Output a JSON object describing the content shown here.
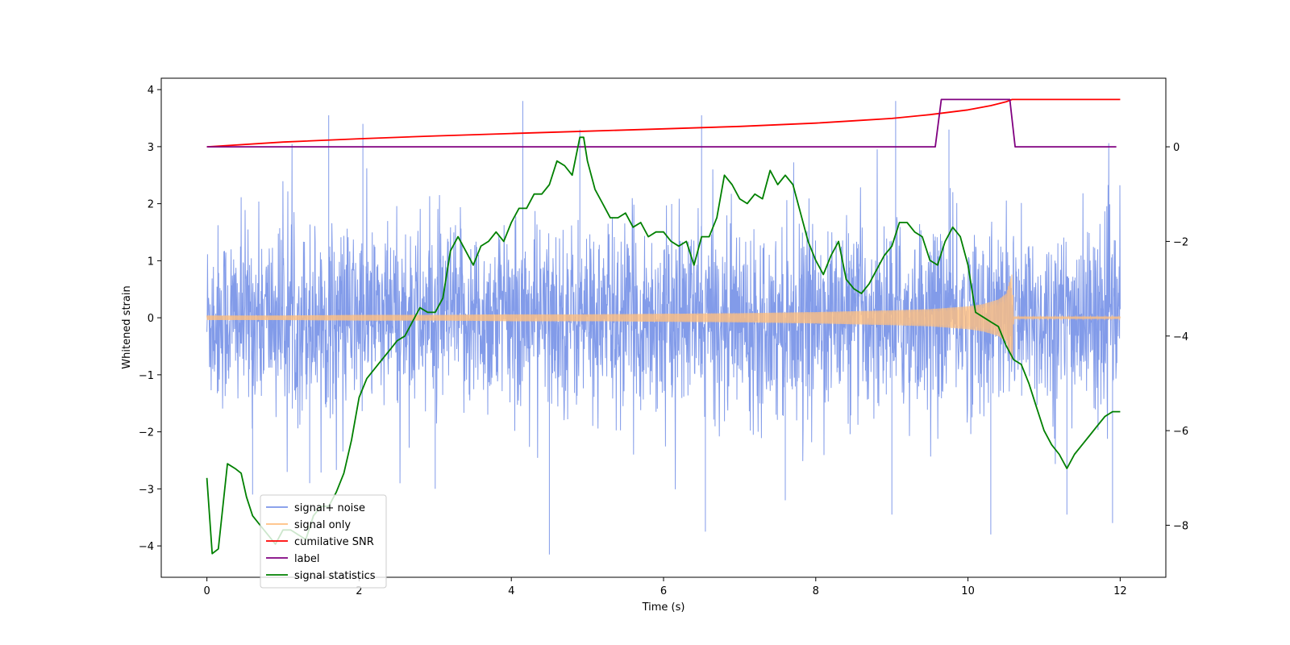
{
  "chart_data": {
    "type": "line",
    "title": "",
    "xlabel": "Time (s)",
    "ylabel": "Whitened strain",
    "y2label": "",
    "xlim": [
      -0.6,
      12.6
    ],
    "ylim": [
      -4.55,
      4.2
    ],
    "y2lim": [
      -9.1,
      1.45
    ],
    "xticks": [
      0,
      2,
      4,
      6,
      8,
      10,
      12
    ],
    "yticks": [
      -4,
      -3,
      -2,
      -1,
      0,
      1,
      2,
      3,
      4
    ],
    "y2ticks": [
      -8,
      -6,
      -4,
      -2,
      0
    ],
    "xtick_labels": [
      "0",
      "2",
      "4",
      "6",
      "8",
      "10",
      "12"
    ],
    "ytick_labels": [
      "−4",
      "−3",
      "−2",
      "−1",
      "0",
      "1",
      "2",
      "3",
      "4"
    ],
    "y2tick_labels": [
      "−8",
      "−6",
      "−4",
      "−2",
      "0"
    ],
    "grid": false,
    "legend_position": "lower-left",
    "legend": [
      {
        "name": "signal+ noise",
        "color": "#7b96e8"
      },
      {
        "name": "signal only",
        "color": "#ffbf80"
      },
      {
        "name": "cumilative SNR",
        "color": "#ff0000"
      },
      {
        "name": "label",
        "color": "#800080"
      },
      {
        "name": "signal statistics",
        "color": "#008000"
      }
    ],
    "series": [
      {
        "name": "signal+ noise",
        "axis": "left",
        "color": "#7b96e8",
        "description": "noise-dominated whitened strain, approx. spread -4.2 to 3.8, filled between 0 and 12 s",
        "x": [
          0,
          12
        ],
        "band": [
          -2.2,
          2.2
        ],
        "peaks": [
          {
            "x": 1.6,
            "y": 3.55
          },
          {
            "x": 2.05,
            "y": 3.4
          },
          {
            "x": 4.15,
            "y": 3.8
          },
          {
            "x": 4.9,
            "y": 3.3
          },
          {
            "x": 6.5,
            "y": 3.55
          },
          {
            "x": 9.05,
            "y": 3.8
          },
          {
            "x": 9.75,
            "y": 3.3
          },
          {
            "x": 4.5,
            "y": -4.15
          },
          {
            "x": 6.55,
            "y": -3.75
          },
          {
            "x": 9.0,
            "y": -3.45
          },
          {
            "x": 10.3,
            "y": -3.8
          },
          {
            "x": 11.3,
            "y": -3.45
          },
          {
            "x": 11.9,
            "y": -3.6
          },
          {
            "x": 0.6,
            "y": -3.1
          },
          {
            "x": 3.0,
            "y": -3.0
          },
          {
            "x": 1.35,
            "y": -2.9
          },
          {
            "x": 7.6,
            "y": -3.2
          }
        ]
      },
      {
        "name": "signal only",
        "axis": "left",
        "color": "#ffbf80",
        "description": "chirp with growing amplitude ending near 10.6 s",
        "x": [
          0,
          1,
          2,
          3,
          4,
          5,
          6,
          7,
          8,
          9,
          9.5,
          10,
          10.2,
          10.4,
          10.5,
          10.58,
          10.6,
          12
        ],
        "envelope": [
          0.04,
          0.04,
          0.05,
          0.05,
          0.06,
          0.06,
          0.07,
          0.08,
          0.1,
          0.13,
          0.15,
          0.2,
          0.24,
          0.32,
          0.42,
          0.78,
          0.02,
          0.02
        ]
      },
      {
        "name": "cumilative SNR",
        "axis": "right",
        "color": "#ff0000",
        "x": [
          0,
          1,
          2,
          3,
          4,
          5,
          6,
          7,
          8,
          8.5,
          9,
          9.5,
          10,
          10.3,
          10.5,
          10.58,
          12
        ],
        "y": [
          0.0,
          0.1,
          0.17,
          0.23,
          0.28,
          0.33,
          0.38,
          0.43,
          0.5,
          0.55,
          0.6,
          0.68,
          0.78,
          0.87,
          0.95,
          1.0,
          1.0
        ]
      },
      {
        "name": "label",
        "axis": "right",
        "color": "#800080",
        "x": [
          0,
          9.57,
          9.65,
          10.55,
          10.62,
          11.95
        ],
        "y": [
          0,
          0,
          1,
          1,
          0,
          0
        ]
      },
      {
        "name": "signal statistics",
        "axis": "right",
        "color": "#008000",
        "x": [
          0,
          0.07,
          0.15,
          0.27,
          0.37,
          0.45,
          0.52,
          0.6,
          0.7,
          0.8,
          0.9,
          1.0,
          1.1,
          1.2,
          1.3,
          1.4,
          1.5,
          1.6,
          1.7,
          1.8,
          1.9,
          2.0,
          2.1,
          2.2,
          2.3,
          2.4,
          2.5,
          2.6,
          2.7,
          2.8,
          2.9,
          3.0,
          3.1,
          3.2,
          3.3,
          3.4,
          3.5,
          3.6,
          3.7,
          3.8,
          3.9,
          4.0,
          4.1,
          4.2,
          4.3,
          4.4,
          4.5,
          4.6,
          4.7,
          4.8,
          4.9,
          4.95,
          5.0,
          5.1,
          5.2,
          5.3,
          5.4,
          5.5,
          5.6,
          5.7,
          5.8,
          5.9,
          6.0,
          6.1,
          6.2,
          6.3,
          6.4,
          6.5,
          6.6,
          6.7,
          6.8,
          6.9,
          7.0,
          7.1,
          7.2,
          7.3,
          7.4,
          7.5,
          7.6,
          7.7,
          7.8,
          7.9,
          8.0,
          8.1,
          8.2,
          8.3,
          8.4,
          8.5,
          8.6,
          8.7,
          8.8,
          8.9,
          9.0,
          9.1,
          9.2,
          9.3,
          9.4,
          9.5,
          9.6,
          9.7,
          9.8,
          9.9,
          10.0,
          10.1,
          10.2,
          10.3,
          10.4,
          10.5,
          10.6,
          10.7,
          10.8,
          10.9,
          11.0,
          11.1,
          11.2,
          11.3,
          11.4,
          11.5,
          11.6,
          11.7,
          11.8,
          11.9,
          12.0
        ],
        "y": [
          -7.0,
          -8.6,
          -8.5,
          -6.7,
          -6.8,
          -6.9,
          -7.4,
          -7.8,
          -8.0,
          -8.2,
          -8.4,
          -8.1,
          -8.1,
          -8.2,
          -8.3,
          -7.8,
          -7.6,
          -7.6,
          -7.3,
          -6.9,
          -6.2,
          -5.3,
          -4.9,
          -4.7,
          -4.5,
          -4.3,
          -4.1,
          -4.0,
          -3.7,
          -3.4,
          -3.5,
          -3.5,
          -3.2,
          -2.2,
          -1.9,
          -2.2,
          -2.5,
          -2.1,
          -2.0,
          -1.8,
          -2.0,
          -1.6,
          -1.3,
          -1.3,
          -1.0,
          -1.0,
          -0.8,
          -0.3,
          -0.4,
          -0.6,
          0.2,
          0.2,
          -0.3,
          -0.9,
          -1.2,
          -1.5,
          -1.5,
          -1.4,
          -1.7,
          -1.6,
          -1.9,
          -1.8,
          -1.8,
          -2.0,
          -2.1,
          -2.0,
          -2.5,
          -1.9,
          -1.9,
          -1.5,
          -0.6,
          -0.8,
          -1.1,
          -1.2,
          -1.0,
          -1.1,
          -0.5,
          -0.8,
          -0.6,
          -0.8,
          -1.4,
          -2.0,
          -2.4,
          -2.7,
          -2.3,
          -2.0,
          -2.8,
          -3.0,
          -3.1,
          -2.9,
          -2.6,
          -2.3,
          -2.1,
          -1.6,
          -1.6,
          -1.8,
          -1.9,
          -2.4,
          -2.5,
          -2.0,
          -1.7,
          -1.9,
          -2.5,
          -3.5,
          -3.6,
          -3.7,
          -3.8,
          -4.2,
          -4.5,
          -4.6,
          -5.0,
          -5.5,
          -6.0,
          -6.3,
          -6.5,
          -6.8,
          -6.5,
          -6.3,
          -6.1,
          -5.9,
          -5.7,
          -5.6,
          -5.6
        ]
      }
    ]
  }
}
